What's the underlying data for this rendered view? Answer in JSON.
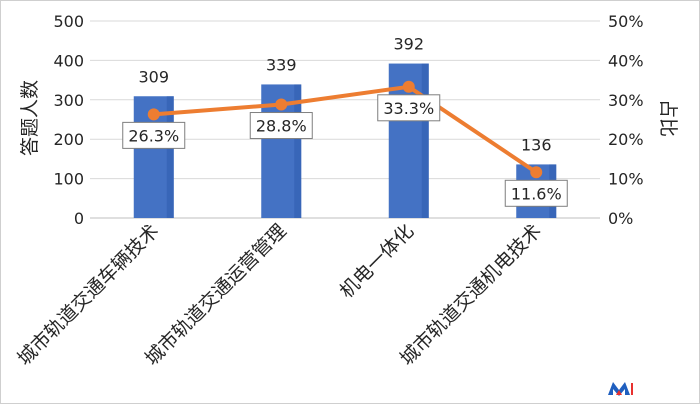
{
  "chart_data": {
    "type": "bar+line",
    "categories": [
      "城市轨道交通车辆技术",
      "城市轨道交通运营管理",
      "机电一体化",
      "城市轨道交通机电技术"
    ],
    "series": [
      {
        "type": "bar",
        "axis": "left",
        "values": [
          309,
          339,
          392,
          136
        ]
      },
      {
        "type": "line",
        "axis": "right",
        "values": [
          26.3,
          28.8,
          33.3,
          11.6
        ]
      }
    ],
    "value_labels": [
      "309",
      "339",
      "392",
      "136"
    ],
    "percent_labels": [
      "26.3%",
      "28.8%",
      "33.3%",
      "11.6%"
    ],
    "y_left": {
      "label": "答题人数",
      "lim": [
        0,
        500
      ],
      "ticks": [
        "0",
        "100",
        "200",
        "300",
        "400",
        "500"
      ]
    },
    "y_right": {
      "label": "占比",
      "lim": [
        0,
        50
      ],
      "ticks": [
        "0%",
        "10%",
        "20%",
        "30%",
        "40%",
        "50%"
      ]
    },
    "grid": true,
    "legend": "none",
    "colors": {
      "bar": "#4472C4",
      "bar_dark": "#2F5DAE",
      "line": "#ED7D31",
      "grid": "#D9D9D9",
      "label_border": "#7F7F7F"
    }
  },
  "watermark": {
    "name": "m-logo-icon",
    "colors": [
      "#1F5FBF",
      "#E8312F"
    ]
  }
}
